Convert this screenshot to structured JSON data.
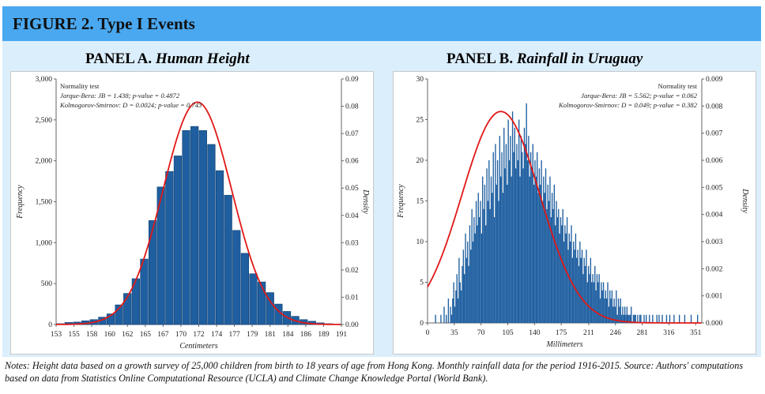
{
  "figure": {
    "title": "FIGURE 2.  Type I Events"
  },
  "panels": [
    {
      "label": "PANEL A.",
      "subtitle": "Human Height"
    },
    {
      "label": "PANEL B.",
      "subtitle": "Rainfall in Uruguay"
    }
  ],
  "notes": "Notes: Height data based on a growth survey of 25,000 children from birth to 18 years of age from Hong Kong. Monthly rainfall data for the period 1916-2015.  Source: Authors' computations based on data from Statistics Online Computational Resource (UCLA) and Climate Change Knowledge Portal (World Bank).",
  "colors": {
    "bars": "#1f5fa0",
    "curve": "#e01818",
    "title_bar": "#4aa8f0",
    "panel_bg": "#dbeefc"
  },
  "chart_data": [
    {
      "type": "bar",
      "xlabel": "Centimeters",
      "ylabel": "Frequency",
      "y2label": "Density",
      "ylim": [
        0,
        3000
      ],
      "y2lim": [
        0,
        0.09
      ],
      "yticks": [
        "0",
        "500",
        "1,000",
        "1,500",
        "2,000",
        "2,500",
        "3,000"
      ],
      "y2ticks": [
        "0.00",
        "0.01",
        "0.02",
        "0.03",
        "0.04",
        "0.05",
        "0.06",
        "0.07",
        "0.08",
        "0.09"
      ],
      "xticks": [
        "153",
        "155",
        "158",
        "160",
        "162",
        "165",
        "167",
        "170",
        "172",
        "174",
        "177",
        "179",
        "181",
        "184",
        "186",
        "189",
        "191"
      ],
      "legend": [
        "Normality test",
        "Jarque-Bera: JB = 1.438; p-value = 0.4872",
        "Kolmogorov-Smirnov: D = 0.0024; p-value = 0.743"
      ],
      "legend_position": "top-left",
      "bin_start": 153.0,
      "bin_width": 1.2,
      "values": [
        10,
        25,
        30,
        45,
        60,
        90,
        130,
        240,
        380,
        560,
        800,
        1270,
        1680,
        1870,
        2060,
        2370,
        2420,
        2370,
        2200,
        1880,
        1580,
        1150,
        870,
        620,
        520,
        390,
        250,
        160,
        100,
        60,
        40,
        20,
        10,
        5
      ],
      "curve": {
        "type": "normal",
        "mean": 173.2,
        "sd": 4.9,
        "peak_density": 0.0815
      }
    },
    {
      "type": "bar",
      "xlabel": "Millimeters",
      "ylabel": "Frequency",
      "y2label": "Density",
      "ylim": [
        0,
        30
      ],
      "y2lim": [
        0,
        0.009
      ],
      "yticks": [
        "0",
        "5",
        "10",
        "15",
        "20",
        "25",
        "30"
      ],
      "y2ticks": [
        "0.000",
        "0.001",
        "0.002",
        "0.003",
        "0.004",
        "0.005",
        "0.006",
        "0.007",
        "0.008",
        "0.009"
      ],
      "xticks": [
        "0",
        "35",
        "70",
        "105",
        "140",
        "175",
        "211",
        "246",
        "281",
        "316",
        "351"
      ],
      "legend": [
        "Normality test",
        "Jarque-Bera: JB = 5.562; p-value = 0.062",
        "Kolmogorov-Smirnov: D = 0.049; p-value = 0.382"
      ],
      "legend_position": "top-right",
      "bin_start": 0,
      "bin_width": 1.4,
      "xmax": 359,
      "values": [
        0,
        0,
        0,
        0,
        0,
        0,
        0,
        1,
        0,
        0,
        0,
        0,
        1,
        0,
        0,
        2,
        0,
        1,
        0,
        3,
        0,
        2,
        1,
        3,
        5,
        2,
        4,
        6,
        3,
        8,
        5,
        4,
        7,
        9,
        6,
        11,
        8,
        10,
        7,
        12,
        9,
        14,
        10,
        13,
        11,
        15,
        12,
        16,
        13,
        15,
        11,
        18,
        14,
        17,
        12,
        19,
        15,
        20,
        14,
        18,
        16,
        21,
        13,
        22,
        17,
        20,
        15,
        23,
        18,
        21,
        16,
        24,
        19,
        22,
        17,
        25,
        20,
        23,
        18,
        26,
        21,
        24,
        19,
        22,
        20,
        25,
        18,
        23,
        21,
        19,
        24,
        22,
        27,
        20,
        23,
        18,
        21,
        19,
        22,
        17,
        20,
        18,
        21,
        16,
        19,
        17,
        20,
        15,
        18,
        16,
        19,
        14,
        17,
        15,
        18,
        13,
        16,
        14,
        17,
        12,
        15,
        13,
        14,
        11,
        13,
        12,
        14,
        10,
        12,
        11,
        13,
        9,
        11,
        10,
        12,
        8,
        10,
        9,
        11,
        8,
        9,
        7,
        10,
        8,
        9,
        6,
        8,
        7,
        9,
        5,
        7,
        6,
        8,
        5,
        6,
        5,
        7,
        4,
        6,
        5,
        6,
        3,
        5,
        4,
        5,
        3,
        4,
        3,
        5,
        2,
        4,
        3,
        4,
        2,
        3,
        2,
        4,
        1,
        3,
        2,
        3,
        1,
        2,
        1,
        2,
        1,
        2,
        1,
        1,
        1,
        2,
        0,
        1,
        1,
        1,
        0,
        1,
        0,
        1,
        1,
        0,
        0,
        1,
        0,
        1,
        0,
        0,
        1,
        0,
        0,
        1,
        0,
        0,
        0,
        1,
        0,
        1,
        0,
        0,
        1,
        0,
        0,
        0,
        1,
        0,
        0,
        1,
        0,
        0,
        0,
        1,
        0,
        0,
        0,
        0,
        1,
        0,
        0,
        0,
        0,
        1,
        0,
        0,
        0,
        0,
        0,
        1,
        0,
        0,
        0,
        0,
        0,
        1
      ],
      "curve": {
        "type": "normal",
        "mean": 96,
        "sd": 51,
        "peak_density": 0.0078
      }
    }
  ]
}
